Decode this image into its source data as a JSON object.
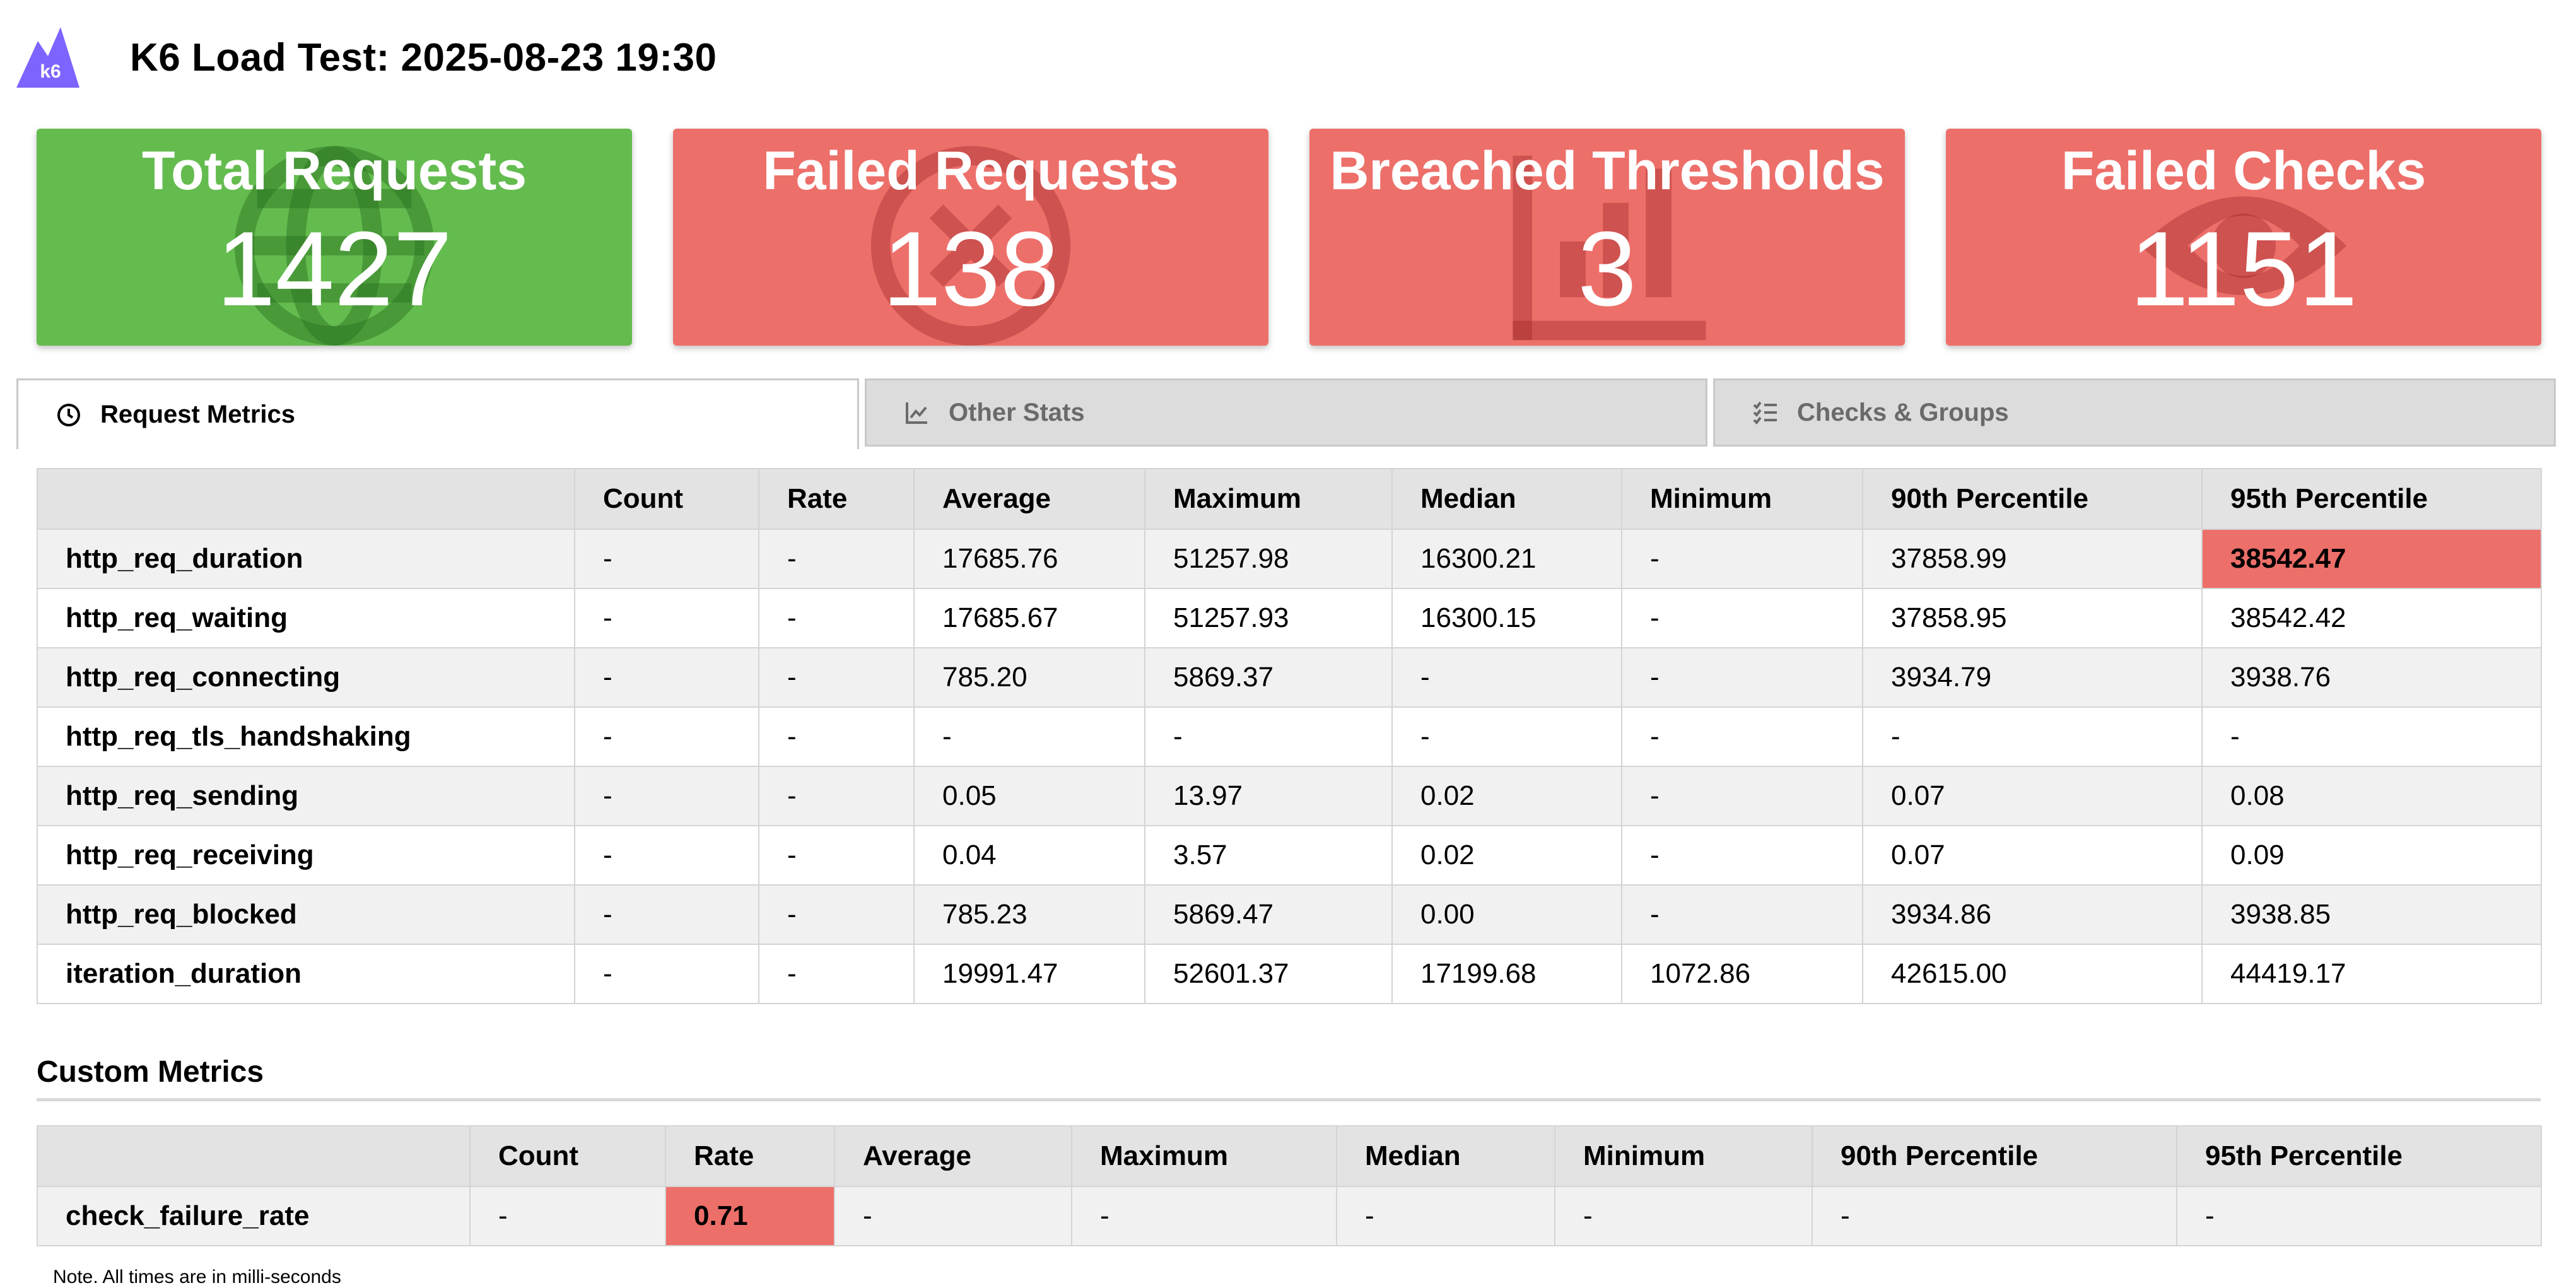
{
  "header": {
    "title": "K6 Load Test: 2025-08-23 19:30",
    "logo_text": "k6"
  },
  "colors": {
    "pass": "#64bc4f",
    "fail": "#ed6f6a",
    "brand": "#7d64ff"
  },
  "cards": [
    {
      "title": "Total Requests",
      "value": "1427",
      "status": "pass",
      "icon": "globe-icon"
    },
    {
      "title": "Failed Requests",
      "value": "138",
      "status": "fail",
      "icon": "times-circle-icon"
    },
    {
      "title": "Breached Thresholds",
      "value": "3",
      "status": "fail",
      "icon": "chart-icon"
    },
    {
      "title": "Failed Checks",
      "value": "1151",
      "status": "fail",
      "icon": "eye-icon"
    }
  ],
  "tabs": [
    {
      "label": "Request Metrics",
      "icon": "clock-icon",
      "active": true
    },
    {
      "label": "Other Stats",
      "icon": "line-chart-icon",
      "active": false
    },
    {
      "label": "Checks & Groups",
      "icon": "checklist-icon",
      "active": false
    }
  ],
  "request_metrics": {
    "columns": [
      "",
      "Count",
      "Rate",
      "Average",
      "Maximum",
      "Median",
      "Minimum",
      "90th Percentile",
      "95th Percentile"
    ],
    "rows": [
      [
        "http_req_duration",
        "-",
        "-",
        "17685.76",
        "51257.98",
        "16300.21",
        "-",
        "37858.99",
        "38542.47"
      ],
      [
        "http_req_waiting",
        "-",
        "-",
        "17685.67",
        "51257.93",
        "16300.15",
        "-",
        "37858.95",
        "38542.42"
      ],
      [
        "http_req_connecting",
        "-",
        "-",
        "785.20",
        "5869.37",
        "-",
        "-",
        "3934.79",
        "3938.76"
      ],
      [
        "http_req_tls_handshaking",
        "-",
        "-",
        "-",
        "-",
        "-",
        "-",
        "-",
        "-"
      ],
      [
        "http_req_sending",
        "-",
        "-",
        "0.05",
        "13.97",
        "0.02",
        "-",
        "0.07",
        "0.08"
      ],
      [
        "http_req_receiving",
        "-",
        "-",
        "0.04",
        "3.57",
        "0.02",
        "-",
        "0.07",
        "0.09"
      ],
      [
        "http_req_blocked",
        "-",
        "-",
        "785.23",
        "5869.47",
        "0.00",
        "-",
        "3934.86",
        "3938.85"
      ],
      [
        "iteration_duration",
        "-",
        "-",
        "19991.47",
        "52601.37",
        "17199.68",
        "1072.86",
        "42615.00",
        "44419.17"
      ]
    ],
    "failed_cells": [
      [
        0,
        8
      ]
    ]
  },
  "custom_metrics": {
    "section_title": "Custom Metrics",
    "columns": [
      "",
      "Count",
      "Rate",
      "Average",
      "Maximum",
      "Median",
      "Minimum",
      "90th Percentile",
      "95th Percentile"
    ],
    "rows": [
      [
        "check_failure_rate",
        "-",
        "0.71",
        "-",
        "-",
        "-",
        "-",
        "-",
        "-"
      ]
    ],
    "failed_cells": [
      [
        0,
        2
      ]
    ]
  },
  "note": "Note. All times are in milli-seconds"
}
